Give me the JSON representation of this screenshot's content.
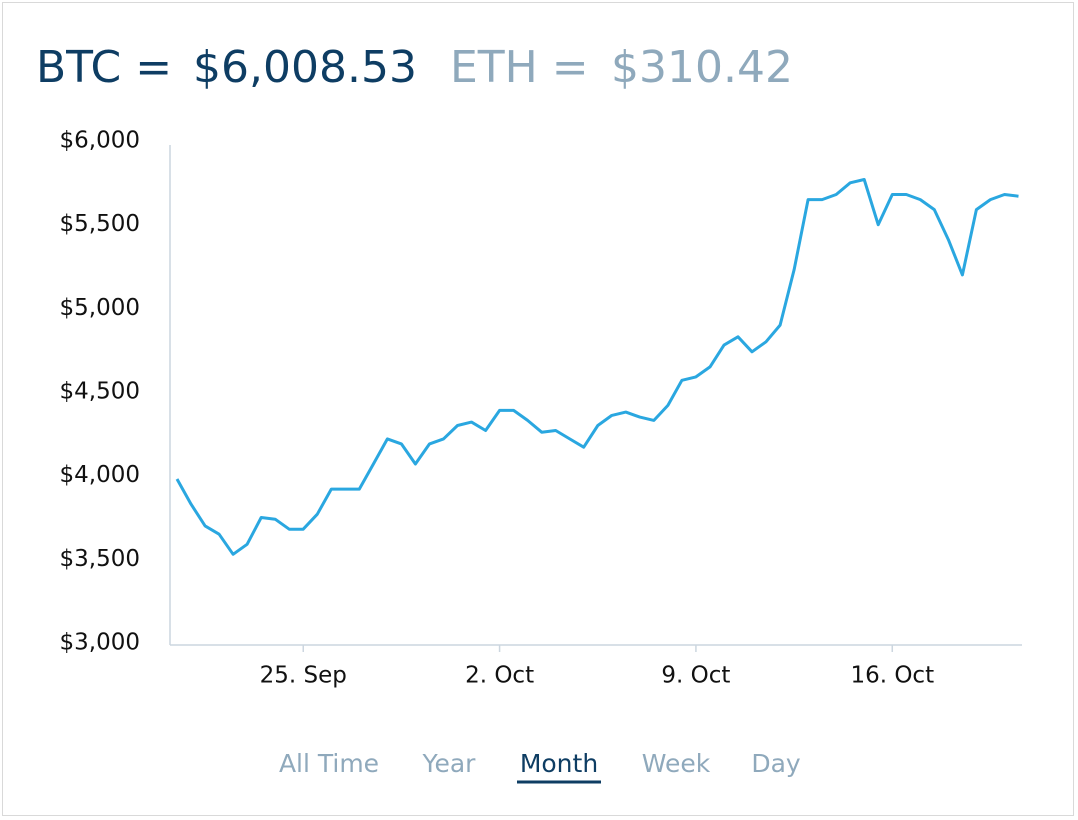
{
  "header": {
    "btc_label": "BTC =",
    "btc_price": "$6,008.53",
    "eth_label": "ETH =",
    "eth_price": "$310.42"
  },
  "tabs": {
    "items": [
      "All Time",
      "Year",
      "Month",
      "Week",
      "Day"
    ],
    "selected": 2
  },
  "chart_data": {
    "type": "line",
    "x": [
      "09-20 12:00",
      "09-21 00:00",
      "09-21 12:00",
      "09-22 00:00",
      "09-22 12:00",
      "09-23 00:00",
      "09-23 12:00",
      "09-24 00:00",
      "09-24 12:00",
      "09-25 00:00",
      "09-25 12:00",
      "09-26 00:00",
      "09-26 12:00",
      "09-27 00:00",
      "09-27 12:00",
      "09-28 00:00",
      "09-28 12:00",
      "09-29 00:00",
      "09-29 12:00",
      "09-30 00:00",
      "09-30 12:00",
      "10-01 00:00",
      "10-01 12:00",
      "10-02 00:00",
      "10-02 12:00",
      "10-03 00:00",
      "10-03 12:00",
      "10-04 00:00",
      "10-04 12:00",
      "10-05 00:00",
      "10-05 12:00",
      "10-06 00:00",
      "10-06 12:00",
      "10-07 00:00",
      "10-07 12:00",
      "10-08 00:00",
      "10-08 12:00",
      "10-09 00:00",
      "10-09 12:00",
      "10-10 00:00",
      "10-10 12:00",
      "10-11 00:00",
      "10-11 12:00",
      "10-12 00:00",
      "10-12 12:00",
      "10-13 00:00",
      "10-13 12:00",
      "10-14 00:00",
      "10-14 12:00",
      "10-15 00:00",
      "10-15 12:00",
      "10-16 00:00",
      "10-16 12:00",
      "10-17 00:00",
      "10-17 12:00",
      "10-18 00:00",
      "10-18 12:00",
      "10-19 00:00",
      "10-19 12:00",
      "10-20 00:00",
      "10-20 12:00"
    ],
    "values": [
      3980,
      3830,
      3700,
      3650,
      3530,
      3590,
      3750,
      3740,
      3680,
      3680,
      3770,
      3920,
      3920,
      3920,
      4070,
      4220,
      4190,
      4070,
      4190,
      4220,
      4300,
      4320,
      4270,
      4390,
      4390,
      4330,
      4260,
      4270,
      4220,
      4170,
      4300,
      4360,
      4380,
      4350,
      4330,
      4420,
      4570,
      4590,
      4650,
      4780,
      4830,
      4740,
      4800,
      4900,
      5230,
      5650,
      5650,
      5680,
      5750,
      5770,
      5500,
      5680,
      5680,
      5650,
      5590,
      5410,
      5200,
      5590,
      5650,
      5680,
      5670
    ],
    "color": "#2aa7e0",
    "xlim": [
      "09-20 06:00",
      "10-20 15:00"
    ],
    "xticks": [
      {
        "value": "09-25 00:00",
        "label": "25. Sep"
      },
      {
        "value": "10-02 00:00",
        "label": "2. Oct"
      },
      {
        "value": "10-09 00:00",
        "label": "9. Oct"
      },
      {
        "value": "10-16 00:00",
        "label": "16. Oct"
      }
    ],
    "ylim": [
      3000,
      6000
    ],
    "yticks": [
      {
        "value": 3000,
        "label": "$3,000"
      },
      {
        "value": 3500,
        "label": "$3,500"
      },
      {
        "value": 4000,
        "label": "$4,000"
      },
      {
        "value": 4500,
        "label": "$4,500"
      },
      {
        "value": 5000,
        "label": "$5,000"
      },
      {
        "value": 5500,
        "label": "$5,500"
      },
      {
        "value": 6000,
        "label": "$6,000"
      }
    ]
  }
}
